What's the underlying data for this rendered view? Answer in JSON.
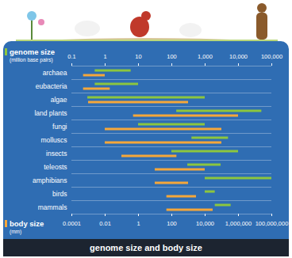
{
  "chart_data": {
    "type": "range",
    "title": "genome size and body size",
    "orientation": "horizontal",
    "log": "x",
    "categories": [
      "archaea",
      "eubacteria",
      "algae",
      "land plants",
      "fungi",
      "molluscs",
      "insects",
      "teleosts",
      "amphibians",
      "birds",
      "mammals"
    ],
    "series": [
      {
        "name": "genome size",
        "units": "(million base pairs)",
        "color": "#8cc63f",
        "values": [
          [
            0.5,
            6
          ],
          [
            0.5,
            10
          ],
          [
            0.3,
            1000
          ],
          [
            140,
            50000
          ],
          [
            10,
            1000
          ],
          [
            400,
            5000
          ],
          [
            100,
            10000
          ],
          [
            300,
            3000
          ],
          [
            1000,
            100000
          ],
          [
            1000,
            2000
          ],
          [
            2000,
            6000
          ]
        ]
      },
      {
        "name": "body size",
        "units": "(mm)",
        "color": "#f5a73b",
        "axis": "x2",
        "values": [
          [
            0.0005,
            0.01
          ],
          [
            0.0005,
            0.02
          ],
          [
            0.001,
            1000
          ],
          [
            0.5,
            1000000
          ],
          [
            0.01,
            100000
          ],
          [
            0.01,
            100000
          ],
          [
            0.1,
            200
          ],
          [
            10,
            10000
          ],
          [
            10,
            1000
          ],
          [
            50,
            3000
          ],
          [
            50,
            30000
          ]
        ]
      }
    ],
    "xlim": [
      0.1,
      100000
    ],
    "xticks": [
      0.1,
      1,
      10,
      100,
      {
        "value": 1000,
        "label": "1,000"
      },
      {
        "value": 10000,
        "label": "10,000"
      },
      {
        "value": 100000,
        "label": "100,000"
      }
    ],
    "x2lim": [
      0.0001,
      100000000
    ],
    "x2ticks": [
      0.0001,
      0.01,
      1,
      100,
      {
        "value": 10000,
        "label": "10,000"
      },
      {
        "value": 1000000,
        "label": "1,000,000"
      },
      {
        "value": 100000000,
        "label": "100,000,000"
      }
    ]
  }
}
